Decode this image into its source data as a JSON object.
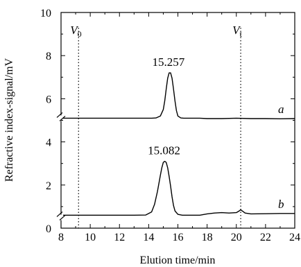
{
  "chart_data": {
    "type": "line",
    "xlabel": "Elution time/min",
    "ylabel": "Refractive index-signal/mV",
    "xlim": [
      8,
      24
    ],
    "ylim": [
      0,
      10
    ],
    "x_ticks": [
      "8",
      "10",
      "12",
      "14",
      "16",
      "18",
      "20",
      "22",
      "24"
    ],
    "y_ticks": [
      "0",
      "2",
      "4",
      "6",
      "8",
      "10"
    ],
    "axis_breaks": [
      0.5,
      5.1
    ],
    "grid": false,
    "legend": "none",
    "reference_lines": [
      {
        "main": "V",
        "sub": "0",
        "x": 9.2
      },
      {
        "main": "V",
        "sub": "t",
        "x": 20.3
      }
    ],
    "series": [
      {
        "name": "a",
        "peak_label": "15.257",
        "x": [
          8.0,
          9.0,
          10.0,
          11.0,
          12.0,
          13.0,
          13.8,
          14.2,
          14.5,
          14.8,
          15.0,
          15.1,
          15.2,
          15.3,
          15.4,
          15.5,
          15.6,
          15.7,
          15.8,
          15.9,
          16.0,
          16.2,
          16.4,
          16.8,
          17.5,
          18.0,
          19.0,
          20.0,
          21.0,
          22.0,
          23.0,
          24.0
        ],
        "y": [
          5.1,
          5.1,
          5.1,
          5.1,
          5.1,
          5.1,
          5.1,
          5.1,
          5.11,
          5.2,
          5.5,
          5.9,
          6.45,
          6.95,
          7.2,
          7.2,
          6.95,
          6.45,
          5.9,
          5.45,
          5.2,
          5.11,
          5.1,
          5.1,
          5.1,
          5.08,
          5.08,
          5.1,
          5.08,
          5.08,
          5.07,
          5.08
        ]
      },
      {
        "name": "b",
        "peak_label": "15.082",
        "x": [
          8.0,
          9.0,
          10.0,
          11.0,
          12.0,
          13.0,
          13.8,
          14.2,
          14.4,
          14.6,
          14.8,
          14.9,
          15.0,
          15.1,
          15.2,
          15.3,
          15.4,
          15.5,
          15.6,
          15.7,
          15.8,
          16.0,
          16.3,
          16.7,
          17.5,
          18.0,
          18.5,
          19.0,
          19.5,
          20.0,
          20.2,
          20.3,
          20.4,
          20.6,
          21.0,
          22.0,
          23.0,
          24.0
        ],
        "y": [
          0.6,
          0.6,
          0.6,
          0.6,
          0.6,
          0.6,
          0.61,
          0.75,
          1.1,
          1.7,
          2.45,
          2.8,
          3.05,
          3.1,
          3.05,
          2.8,
          2.4,
          1.95,
          1.45,
          1.05,
          0.8,
          0.64,
          0.6,
          0.6,
          0.6,
          0.66,
          0.7,
          0.72,
          0.7,
          0.72,
          0.8,
          0.85,
          0.8,
          0.7,
          0.66,
          0.67,
          0.68,
          0.68
        ]
      }
    ]
  }
}
